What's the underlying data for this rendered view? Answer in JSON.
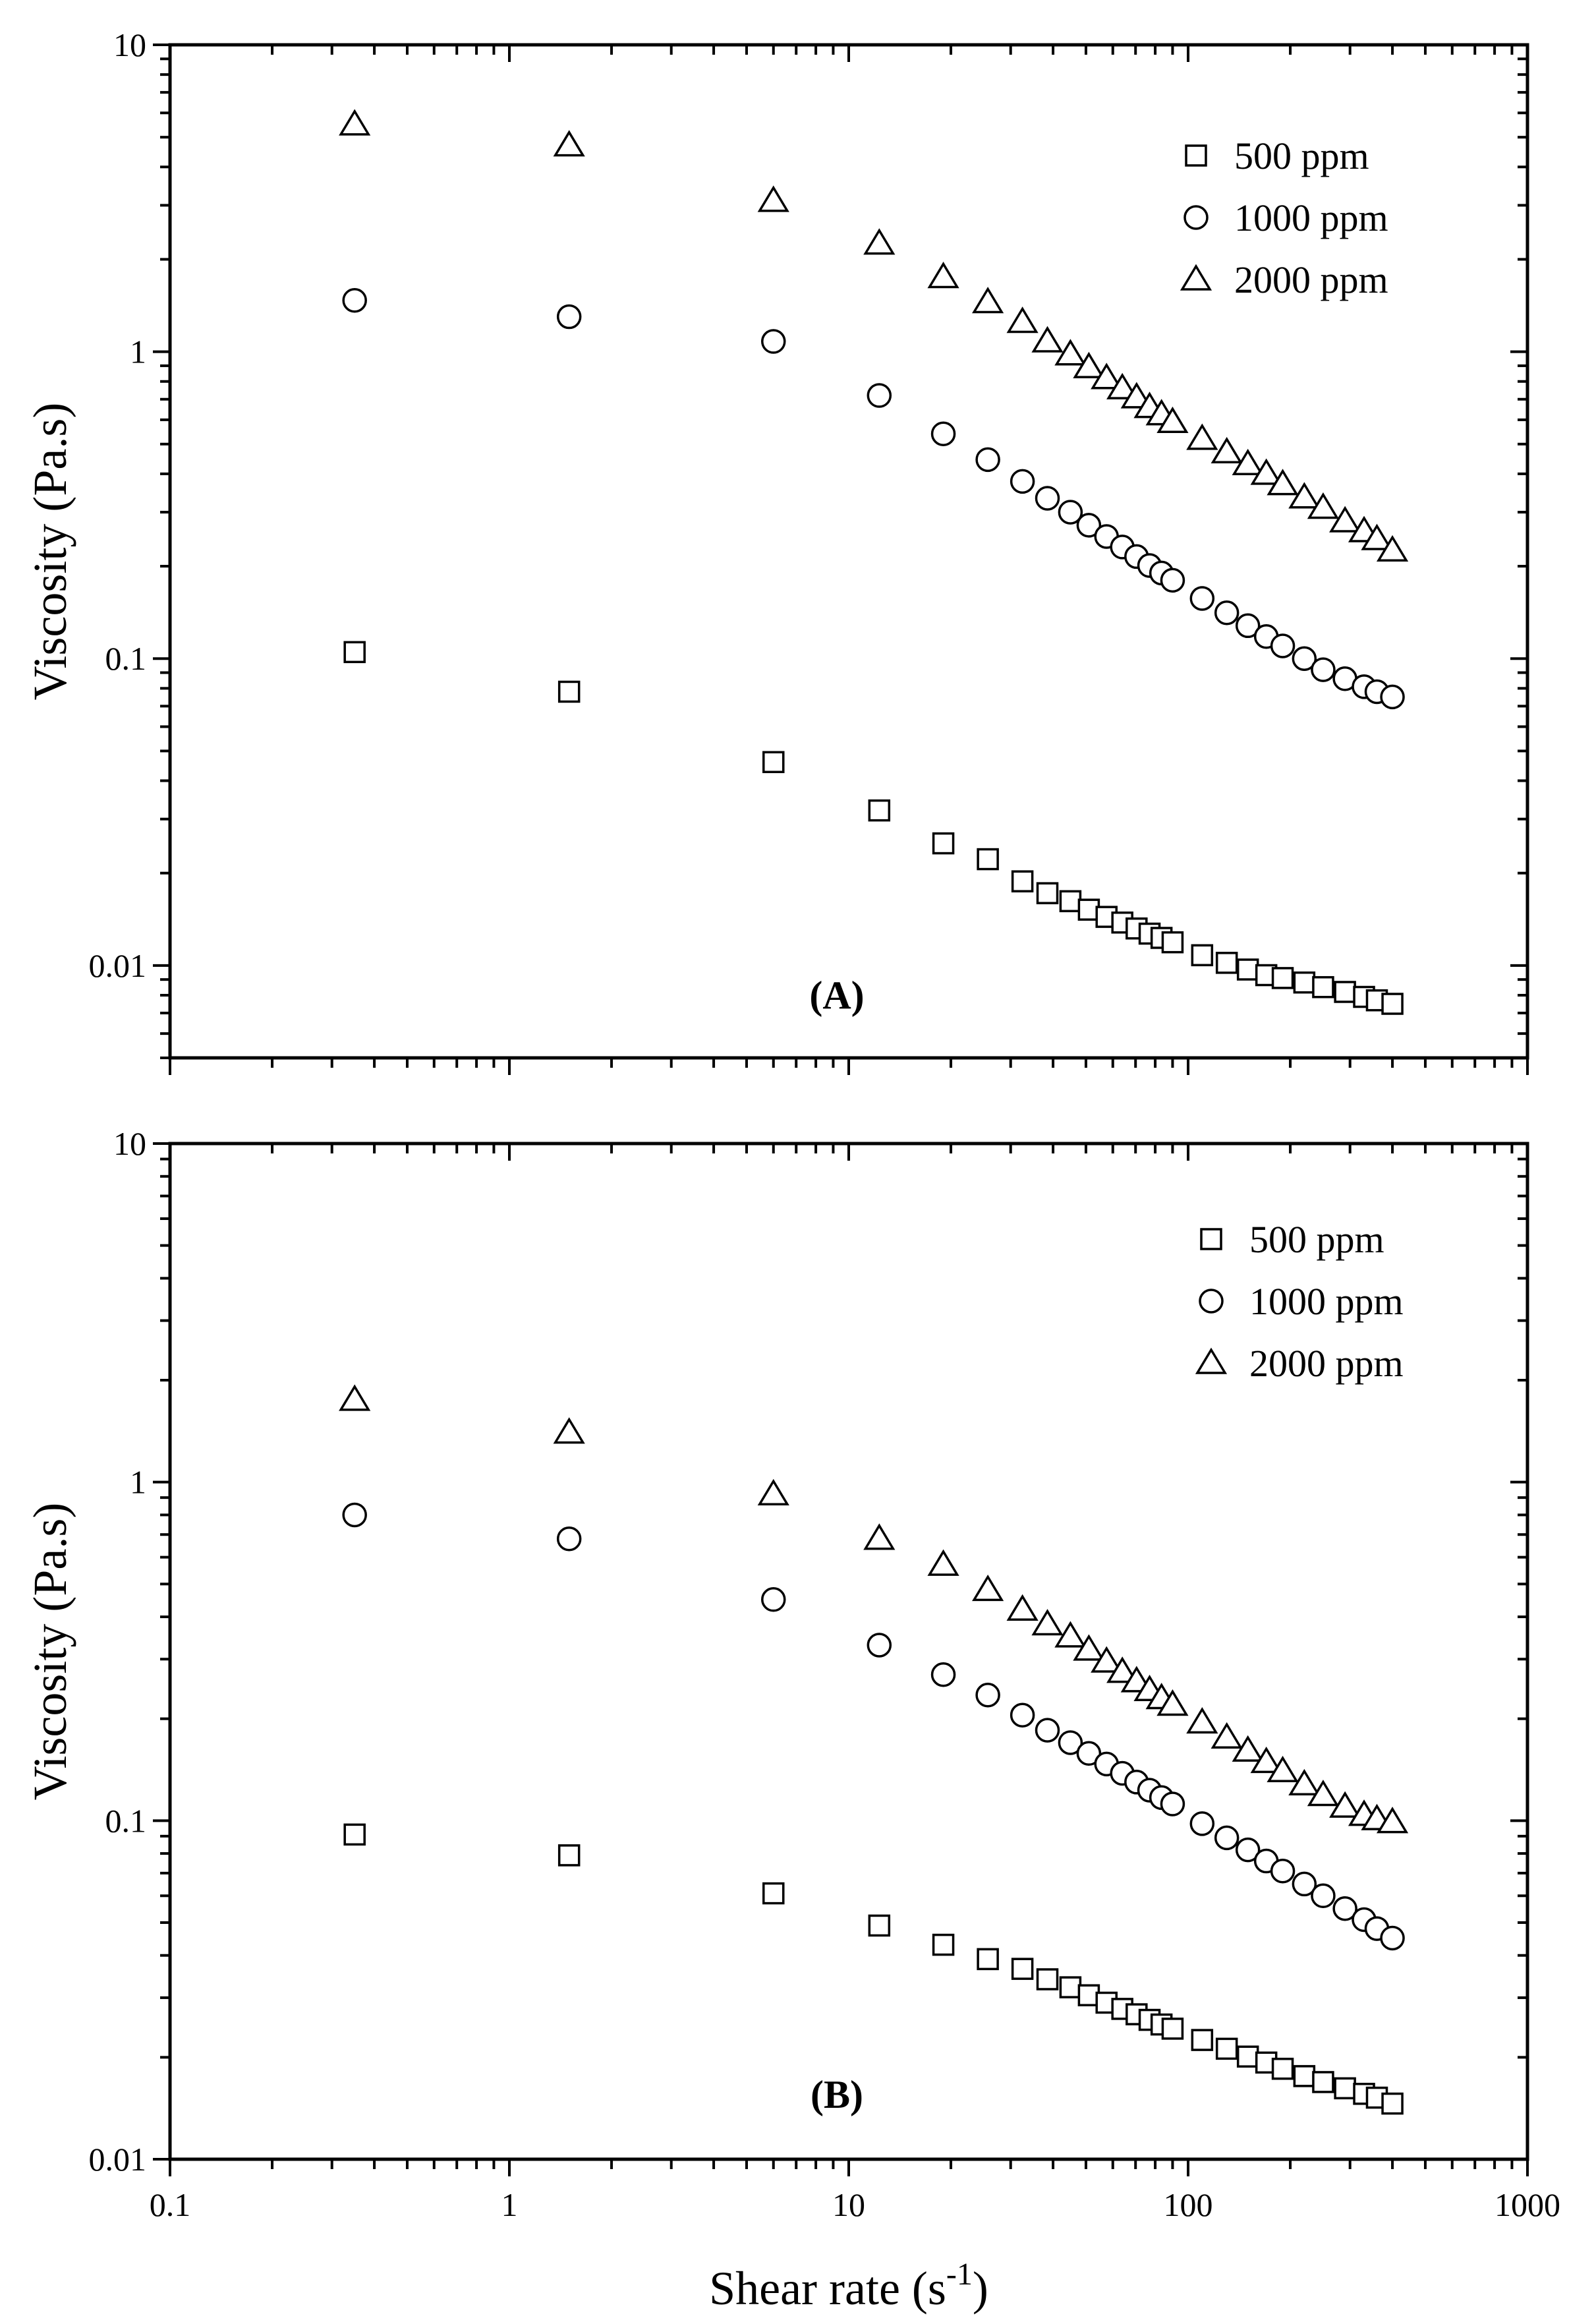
{
  "chart_data": [
    {
      "type": "scatter",
      "panel_label": "(A)",
      "xscale": "log",
      "yscale": "log",
      "xlim": [
        0.1,
        1000
      ],
      "ylim": [
        0.005,
        10
      ],
      "xlabel": "Shear rate (s-1)",
      "ylabel": "Viscosity (Pa.s)",
      "y_ticks": [
        "10",
        "1",
        "0.1",
        "0.01"
      ],
      "legend_position": "top-right",
      "series": [
        {
          "name": "500 ppm",
          "marker": "square",
          "x": [
            0.35,
            1.5,
            6,
            12.3,
            19,
            25.7,
            32.5,
            38.5,
            45,
            51,
            57.5,
            64,
            70.5,
            77,
            83.5,
            90,
            110,
            130,
            150,
            170,
            190,
            220,
            250,
            290,
            330,
            360,
            400
          ],
          "y": [
            0.105,
            0.078,
            0.046,
            0.032,
            0.025,
            0.0222,
            0.0188,
            0.0172,
            0.0162,
            0.0152,
            0.0144,
            0.0138,
            0.0132,
            0.0127,
            0.0123,
            0.0119,
            0.0108,
            0.0102,
            0.0097,
            0.0093,
            0.0091,
            0.0088,
            0.0085,
            0.0082,
            0.0079,
            0.0077,
            0.0075
          ]
        },
        {
          "name": "1000 ppm",
          "marker": "circle",
          "x": [
            0.35,
            1.5,
            6,
            12.3,
            19,
            25.7,
            32.5,
            38.5,
            45,
            51,
            57.5,
            64,
            70.5,
            77,
            83.5,
            90,
            110,
            130,
            150,
            170,
            190,
            220,
            250,
            290,
            330,
            360,
            400
          ],
          "y": [
            1.47,
            1.3,
            1.08,
            0.72,
            0.54,
            0.445,
            0.378,
            0.333,
            0.3,
            0.272,
            0.25,
            0.231,
            0.215,
            0.201,
            0.19,
            0.18,
            0.157,
            0.141,
            0.128,
            0.118,
            0.11,
            0.1,
            0.092,
            0.086,
            0.081,
            0.078,
            0.075
          ]
        },
        {
          "name": "2000 ppm",
          "marker": "triangle",
          "x": [
            0.35,
            1.5,
            6,
            12.3,
            19,
            25.7,
            32.5,
            38.5,
            45,
            51,
            57.5,
            64,
            70.5,
            77,
            83.5,
            90,
            110,
            130,
            150,
            170,
            190,
            220,
            250,
            290,
            330,
            360,
            400
          ],
          "y": [
            5.5,
            4.7,
            3.1,
            2.25,
            1.75,
            1.45,
            1.25,
            1.08,
            0.98,
            0.89,
            0.82,
            0.76,
            0.71,
            0.66,
            0.625,
            0.59,
            0.52,
            0.47,
            0.43,
            0.4,
            0.37,
            0.335,
            0.31,
            0.28,
            0.26,
            0.245,
            0.225
          ]
        }
      ]
    },
    {
      "type": "scatter",
      "panel_label": "(B)",
      "xscale": "log",
      "yscale": "log",
      "xlim": [
        0.1,
        1000
      ],
      "ylim": [
        0.01,
        10
      ],
      "xlabel": "Shear rate (s-1)",
      "ylabel": "Viscosity (Pa.s)",
      "x_ticks": [
        "0.1",
        "1",
        "10",
        "100",
        "1000"
      ],
      "y_ticks": [
        "10",
        "1",
        "0.1",
        "0.01"
      ],
      "legend_position": "top-right",
      "series": [
        {
          "name": "500 ppm",
          "marker": "square",
          "x": [
            0.35,
            1.5,
            6,
            12.3,
            19,
            25.7,
            32.5,
            38.5,
            45,
            51,
            57.5,
            64,
            70.5,
            77,
            83.5,
            90,
            110,
            130,
            150,
            170,
            190,
            220,
            250,
            290,
            330,
            360,
            400
          ],
          "y": [
            0.091,
            0.079,
            0.061,
            0.049,
            0.043,
            0.039,
            0.0365,
            0.034,
            0.0322,
            0.0305,
            0.029,
            0.0278,
            0.0268,
            0.0258,
            0.025,
            0.0243,
            0.0225,
            0.0212,
            0.0201,
            0.0193,
            0.0185,
            0.0176,
            0.0169,
            0.0162,
            0.0156,
            0.0152,
            0.0146
          ]
        },
        {
          "name": "1000 ppm",
          "marker": "circle",
          "x": [
            0.35,
            1.5,
            6,
            12.3,
            19,
            25.7,
            32.5,
            38.5,
            45,
            51,
            57.5,
            64,
            70.5,
            77,
            83.5,
            90,
            110,
            130,
            150,
            170,
            190,
            220,
            250,
            290,
            330,
            360,
            400
          ],
          "y": [
            0.8,
            0.68,
            0.45,
            0.33,
            0.27,
            0.235,
            0.205,
            0.185,
            0.17,
            0.158,
            0.147,
            0.138,
            0.13,
            0.123,
            0.117,
            0.112,
            0.098,
            0.089,
            0.082,
            0.076,
            0.071,
            0.065,
            0.06,
            0.055,
            0.051,
            0.048,
            0.045
          ]
        },
        {
          "name": "2000 ppm",
          "marker": "triangle",
          "x": [
            0.35,
            1.5,
            6,
            12.3,
            19,
            25.7,
            32.5,
            38.5,
            45,
            51,
            57.5,
            64,
            70.5,
            77,
            83.5,
            90,
            110,
            130,
            150,
            170,
            190,
            220,
            250,
            290,
            330,
            360,
            400
          ],
          "y": [
            1.75,
            1.4,
            0.92,
            0.68,
            0.57,
            0.48,
            0.42,
            0.38,
            0.35,
            0.32,
            0.295,
            0.275,
            0.258,
            0.243,
            0.23,
            0.22,
            0.195,
            0.176,
            0.161,
            0.149,
            0.14,
            0.128,
            0.119,
            0.11,
            0.104,
            0.101,
            0.099
          ]
        }
      ]
    }
  ]
}
